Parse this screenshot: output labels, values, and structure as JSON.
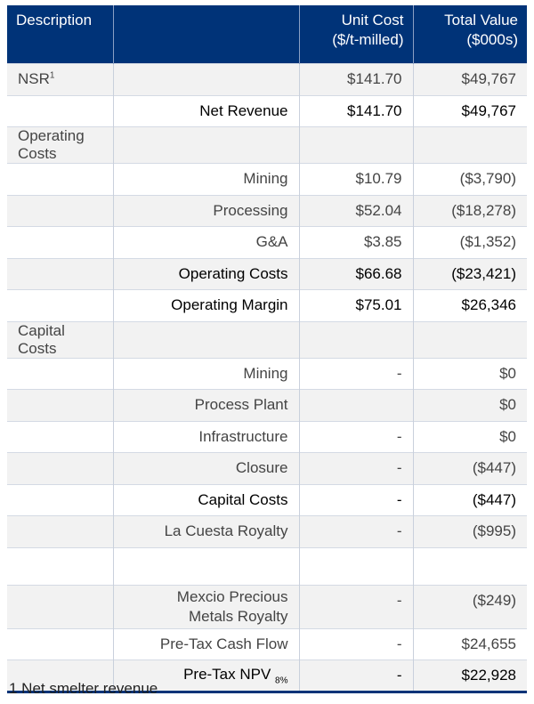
{
  "header": {
    "description": "Description",
    "unit_cost": [
      "Unit Cost",
      "($/t-milled)"
    ],
    "total_value": [
      "Total Value",
      "($000s)"
    ]
  },
  "rows": [
    {
      "desc": "NSR",
      "sup": "1",
      "item": "",
      "unit": "$141.70",
      "total": "$49,767",
      "bold": false
    },
    {
      "desc": "",
      "item": "Net Revenue",
      "unit": "$141.70",
      "total": "$49,767",
      "bold": true
    },
    {
      "desc": "Operating Costs",
      "item": "",
      "unit": "",
      "total": "",
      "bold": false
    },
    {
      "desc": "",
      "item": "Mining",
      "unit": "$10.79",
      "total": "($3,790)",
      "bold": false
    },
    {
      "desc": "",
      "item": "Processing",
      "unit": "$52.04",
      "total": "($18,278)",
      "bold": false
    },
    {
      "desc": "",
      "item": "G&A",
      "unit": "$3.85",
      "total": "($1,352)",
      "bold": false
    },
    {
      "desc": "",
      "item": "Operating Costs",
      "unit": "$66.68",
      "total": "($23,421)",
      "bold": true
    },
    {
      "desc": "",
      "item": "Operating Margin",
      "unit": "$75.01",
      "total": "$26,346",
      "bold": true
    },
    {
      "desc": "Capital Costs",
      "item": "",
      "unit": "",
      "total": "",
      "bold": false
    },
    {
      "desc": "",
      "item": "Mining",
      "unit": "-",
      "total": "$0",
      "bold": false
    },
    {
      "desc": "",
      "item": "Process Plant",
      "unit": "",
      "total": "$0",
      "bold": false
    },
    {
      "desc": "",
      "item": "Infrastructure",
      "unit": "-",
      "total": "$0",
      "bold": false
    },
    {
      "desc": "",
      "item": "Closure",
      "unit": "-",
      "total": "($447)",
      "bold": false
    },
    {
      "desc": "",
      "item": "Capital Costs",
      "unit": "-",
      "total": "($447)",
      "bold": true
    },
    {
      "desc": "",
      "item": "La Cuesta Royalty",
      "unit": "-",
      "total": "($995)",
      "bold": false
    },
    {
      "desc": "",
      "item": "",
      "unit": "",
      "total": "",
      "bold": false
    },
    {
      "desc": "",
      "item": "Mexcio Precious Metals Royalty",
      "unit": "-",
      "total": "($249)",
      "bold": false
    },
    {
      "desc": "",
      "item": "Pre-Tax Cash Flow",
      "unit": "-",
      "total": "$24,655",
      "bold": false
    },
    {
      "desc": "",
      "item": "Pre-Tax NPV",
      "sub": "8%",
      "unit": "-",
      "total": "$22,928",
      "bold": true
    }
  ],
  "footnote": "1 Net smelter revenue",
  "colors": {
    "header_bg": "#003378",
    "stripe": "#f2f2f2"
  }
}
